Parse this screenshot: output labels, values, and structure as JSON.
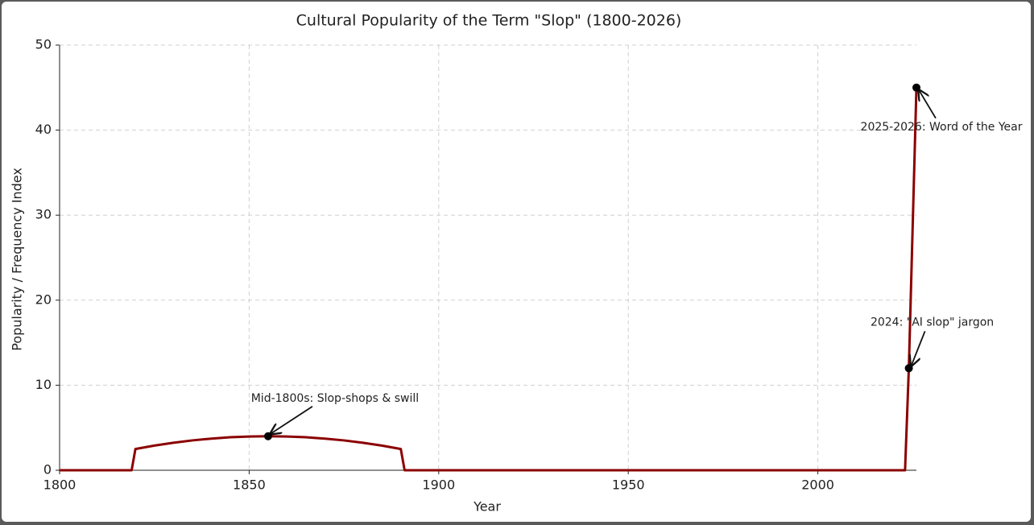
{
  "chart_data": {
    "type": "line",
    "title": "Cultural Popularity of the Term \"Slop\" (1800-2026)",
    "xlabel": "Year",
    "ylabel": "Popularity / Frequency Index",
    "x": [
      1800,
      1819,
      1820,
      1825,
      1830,
      1835,
      1840,
      1845,
      1850,
      1855,
      1860,
      1865,
      1870,
      1875,
      1880,
      1885,
      1890,
      1891,
      2023,
      2024,
      2026
    ],
    "values": [
      0,
      0,
      2.5,
      2.9,
      3.23,
      3.51,
      3.72,
      3.88,
      3.97,
      4,
      3.97,
      3.88,
      3.72,
      3.51,
      3.23,
      2.9,
      2.5,
      0,
      0,
      12,
      45
    ],
    "color": "#8b0000",
    "xlim": [
      1800,
      2026
    ],
    "ylim": [
      0,
      50
    ],
    "xticks": [
      1800,
      1850,
      1900,
      1950,
      2000
    ],
    "yticks": [
      0,
      10,
      20,
      30,
      40,
      50
    ],
    "grid": true,
    "annotations": [
      {
        "text": "Mid-1800s: Slop-shops & swill",
        "x": 1855,
        "y": 4
      },
      {
        "text": "2024: \"AI slop\" jargon",
        "x": 2024,
        "y": 12
      },
      {
        "text": "2025-2026: Word of the Year",
        "x": 2026,
        "y": 45
      }
    ]
  }
}
